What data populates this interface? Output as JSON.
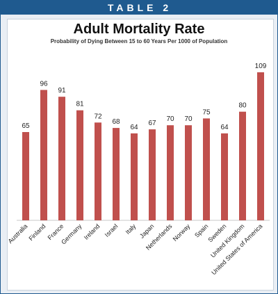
{
  "header": {
    "label": "TABLE 2"
  },
  "chart_data": {
    "type": "bar",
    "title": "Adult Mortality Rate",
    "subtitle": "Probability of Dying Between 15 to 60 Years Per 1000 of Population",
    "categories": [
      "Australia",
      "Finland",
      "France",
      "Germany",
      "Ireland",
      "Israel",
      "Italy",
      "Japan",
      "Netherlands",
      "Norway",
      "Spain",
      "Sweden",
      "United Kingdom",
      "United States of America"
    ],
    "values": [
      65,
      96,
      91,
      81,
      72,
      68,
      64,
      67,
      70,
      70,
      75,
      64,
      80,
      109
    ],
    "ylim": [
      0,
      120
    ],
    "grid": false,
    "bar_color": "#c0504d"
  }
}
